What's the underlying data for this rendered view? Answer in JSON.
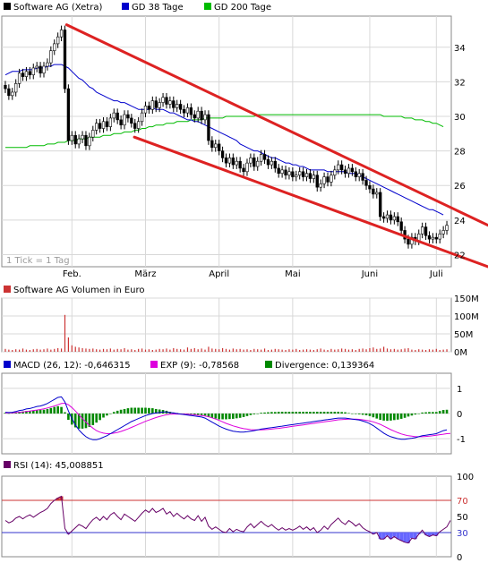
{
  "colors": {
    "price": "#000000",
    "candle_up": "#2a9b2a",
    "candle_down": "#000000",
    "gd38": "#0000cc",
    "gd200": "#00bb00",
    "trend_channel": "#dd2222",
    "volume": "#cc3333",
    "macd": "#0000cc",
    "exp": "#dd00dd",
    "divergence": "#008800",
    "rsi": "#660066",
    "rsi_fill": "#6666ff",
    "rsi_line_70": "#cc3333",
    "rsi_line_30": "#3333cc",
    "grid": "#d8d8d8"
  },
  "chart_data": [
    {
      "type": "candlestick",
      "title": "",
      "legend": [
        {
          "label": "Software AG (Xetra)",
          "color": "#000000"
        },
        {
          "label": "GD 38 Tage",
          "color": "#0000cc"
        },
        {
          "label": "GD 200 Tage",
          "color": "#00bb00"
        }
      ],
      "note": "1 Tick = 1 Tag",
      "x_ticks": [
        "Feb.",
        "März",
        "April",
        "Mai",
        "Juni",
        "Juli"
      ],
      "y_ticks": [
        22,
        24,
        26,
        28,
        30,
        32,
        34
      ],
      "ylim": [
        21.3,
        35.8
      ],
      "close": [
        31.6,
        31.2,
        31.4,
        31.9,
        32.5,
        32.3,
        32.6,
        32.4,
        32.8,
        32.9,
        32.5,
        32.9,
        33.1,
        33.8,
        34.2,
        34.6,
        35.0,
        31.6,
        28.6,
        28.9,
        28.4,
        28.7,
        28.9,
        28.3,
        28.8,
        29.2,
        29.6,
        29.3,
        29.7,
        29.4,
        29.9,
        30.2,
        29.8,
        29.5,
        30.1,
        29.9,
        29.6,
        29.3,
        29.7,
        30.2,
        30.6,
        30.4,
        30.9,
        30.5,
        30.8,
        31.1,
        30.7,
        30.9,
        30.5,
        30.7,
        30.4,
        30.2,
        30.5,
        30.1,
        29.9,
        30.3,
        29.8,
        30.1,
        28.6,
        28.2,
        28.4,
        28.0,
        27.6,
        27.3,
        27.6,
        27.2,
        27.4,
        27.0,
        26.8,
        27.3,
        27.6,
        27.1,
        27.4,
        27.8,
        27.5,
        27.2,
        27.4,
        27.0,
        26.7,
        26.9,
        26.6,
        26.8,
        26.5,
        26.6,
        26.8,
        26.5,
        26.7,
        26.4,
        26.6,
        25.9,
        26.1,
        26.5,
        26.2,
        26.6,
        26.9,
        27.2,
        26.9,
        26.7,
        27.0,
        26.8,
        26.5,
        26.7,
        26.3,
        26.0,
        25.8,
        25.5,
        25.6,
        24.2,
        24.1,
        24.3,
        24.0,
        24.2,
        23.9,
        23.4,
        22.9,
        22.6,
        23.0,
        22.8,
        23.2,
        23.6,
        23.1,
        22.9,
        23.0,
        22.9,
        23.2,
        23.4,
        23.7
      ],
      "gd38": [
        32.4,
        32.5,
        32.6,
        32.6,
        32.6,
        32.7,
        32.7,
        32.7,
        32.7,
        32.8,
        32.8,
        32.8,
        32.9,
        32.9,
        33.0,
        33.0,
        33.0,
        32.9,
        32.8,
        32.6,
        32.4,
        32.2,
        32.1,
        31.9,
        31.7,
        31.6,
        31.4,
        31.3,
        31.2,
        31.1,
        31.0,
        30.9,
        30.9,
        30.8,
        30.8,
        30.7,
        30.6,
        30.5,
        30.4,
        30.4,
        30.4,
        30.4,
        30.5,
        30.4,
        30.4,
        30.4,
        30.3,
        30.2,
        30.2,
        30.1,
        30.0,
        29.9,
        29.8,
        29.8,
        29.7,
        29.7,
        29.6,
        29.5,
        29.4,
        29.3,
        29.2,
        29.1,
        29.0,
        28.9,
        28.8,
        28.7,
        28.6,
        28.4,
        28.3,
        28.2,
        28.1,
        28.0,
        28.0,
        27.9,
        27.8,
        27.7,
        27.6,
        27.6,
        27.5,
        27.4,
        27.3,
        27.3,
        27.2,
        27.2,
        27.1,
        27.1,
        27.0,
        26.9,
        26.9,
        26.9,
        26.9,
        26.9,
        26.8,
        26.8,
        26.8,
        26.8,
        26.8,
        26.8,
        26.7,
        26.7,
        26.7,
        26.6,
        26.5,
        26.4,
        26.3,
        26.2,
        26.1,
        26.0,
        25.9,
        25.8,
        25.7,
        25.6,
        25.5,
        25.4,
        25.3,
        25.2,
        25.1,
        25.0,
        24.9,
        24.8,
        24.7,
        24.6,
        24.6,
        24.5,
        24.4,
        24.3
      ],
      "gd200": [
        28.2,
        28.2,
        28.2,
        28.2,
        28.2,
        28.2,
        28.2,
        28.3,
        28.3,
        28.3,
        28.3,
        28.3,
        28.4,
        28.4,
        28.4,
        28.5,
        28.5,
        28.5,
        28.6,
        28.6,
        28.6,
        28.7,
        28.7,
        28.7,
        28.8,
        28.8,
        28.8,
        28.8,
        28.9,
        28.9,
        28.9,
        29.0,
        29.0,
        29.0,
        29.1,
        29.1,
        29.1,
        29.2,
        29.2,
        29.3,
        29.3,
        29.4,
        29.4,
        29.5,
        29.5,
        29.5,
        29.6,
        29.6,
        29.6,
        29.7,
        29.7,
        29.7,
        29.7,
        29.8,
        29.8,
        29.8,
        29.8,
        29.9,
        29.9,
        29.9,
        29.9,
        29.9,
        29.9,
        30.0,
        30.0,
        30.0,
        30.0,
        30.0,
        30.0,
        30.0,
        30.0,
        30.0,
        30.1,
        30.1,
        30.1,
        30.1,
        30.1,
        30.1,
        30.1,
        30.1,
        30.1,
        30.1,
        30.1,
        30.1,
        30.1,
        30.1,
        30.1,
        30.1,
        30.1,
        30.1,
        30.1,
        30.1,
        30.1,
        30.1,
        30.1,
        30.1,
        30.1,
        30.1,
        30.1,
        30.1,
        30.1,
        30.1,
        30.1,
        30.1,
        30.1,
        30.1,
        30.1,
        30.1,
        30.0,
        30.0,
        30.0,
        30.0,
        30.0,
        30.0,
        29.9,
        29.9,
        29.9,
        29.8,
        29.8,
        29.8,
        29.7,
        29.7,
        29.6,
        29.6,
        29.5,
        29.4
      ],
      "trend_channel": {
        "upper": {
          "from": [
            0.13,
            35.3
          ],
          "to": [
            1.0,
            23.7
          ]
        },
        "lower": {
          "from": [
            0.27,
            28.8
          ],
          "to": [
            1.0,
            21.3
          ]
        }
      }
    },
    {
      "type": "bar",
      "title": "",
      "legend": [
        {
          "label": "Software AG Volumen in Euro",
          "color": "#cc3333"
        }
      ],
      "y_ticks": [
        "150M",
        "100M",
        "50M",
        "0M"
      ],
      "y_tick_values": [
        150,
        100,
        50,
        0
      ],
      "ylim": [
        0,
        150
      ],
      "peak_value": 103,
      "values": [
        8,
        6,
        5,
        7,
        6,
        9,
        6,
        5,
        7,
        8,
        6,
        7,
        9,
        6,
        8,
        10,
        9,
        103,
        40,
        18,
        14,
        12,
        10,
        9,
        8,
        9,
        7,
        6,
        8,
        7,
        9,
        6,
        8,
        7,
        10,
        6,
        7,
        5,
        8,
        9,
        6,
        7,
        5,
        6,
        8,
        7,
        9,
        6,
        10,
        8,
        7,
        6,
        12,
        8,
        10,
        7,
        9,
        6,
        14,
        9,
        8,
        7,
        10,
        8,
        6,
        9,
        7,
        8,
        6,
        7,
        5,
        8,
        7,
        6,
        9,
        5,
        6,
        8,
        7,
        6,
        5,
        7,
        6,
        8,
        5,
        6,
        7,
        6,
        5,
        7,
        9,
        6,
        5,
        8,
        6,
        7,
        9,
        8,
        6,
        7,
        5,
        8,
        9,
        7,
        10,
        12,
        8,
        9,
        14,
        9,
        7,
        8,
        6,
        7,
        9,
        10,
        6,
        5,
        7,
        6,
        5,
        7,
        6,
        8,
        5,
        6,
        7
      ]
    },
    {
      "type": "line",
      "title": "",
      "legend": [
        {
          "label": "MACD (26, 12): -0,646315",
          "color": "#0000cc"
        },
        {
          "label": "EXP (9): -0,78568",
          "color": "#dd00dd"
        },
        {
          "label": "Divergence: 0,139364",
          "color": "#008800"
        }
      ],
      "y_ticks": [
        1,
        0,
        -1
      ],
      "ylim": [
        -1.6,
        1.6
      ],
      "macd": [
        0.05,
        0.04,
        0.05,
        0.08,
        0.12,
        0.14,
        0.18,
        0.2,
        0.24,
        0.28,
        0.3,
        0.34,
        0.4,
        0.48,
        0.56,
        0.64,
        0.66,
        0.46,
        0.1,
        -0.2,
        -0.45,
        -0.65,
        -0.8,
        -0.92,
        -1.0,
        -1.04,
        -1.04,
        -1.0,
        -0.94,
        -0.88,
        -0.8,
        -0.72,
        -0.64,
        -0.56,
        -0.48,
        -0.4,
        -0.32,
        -0.26,
        -0.2,
        -0.14,
        -0.08,
        -0.04,
        0.0,
        0.02,
        0.04,
        0.06,
        0.06,
        0.04,
        0.02,
        0.0,
        -0.02,
        -0.04,
        -0.06,
        -0.08,
        -0.1,
        -0.12,
        -0.14,
        -0.18,
        -0.26,
        -0.34,
        -0.42,
        -0.5,
        -0.56,
        -0.62,
        -0.66,
        -0.7,
        -0.72,
        -0.74,
        -0.74,
        -0.72,
        -0.7,
        -0.68,
        -0.65,
        -0.62,
        -0.6,
        -0.58,
        -0.56,
        -0.54,
        -0.52,
        -0.5,
        -0.48,
        -0.46,
        -0.44,
        -0.42,
        -0.4,
        -0.38,
        -0.36,
        -0.34,
        -0.32,
        -0.3,
        -0.28,
        -0.26,
        -0.24,
        -0.22,
        -0.2,
        -0.18,
        -0.18,
        -0.18,
        -0.2,
        -0.22,
        -0.24,
        -0.26,
        -0.3,
        -0.34,
        -0.4,
        -0.48,
        -0.58,
        -0.68,
        -0.78,
        -0.86,
        -0.92,
        -0.96,
        -1.0,
        -1.02,
        -1.02,
        -1.0,
        -0.98,
        -0.96,
        -0.92,
        -0.88,
        -0.86,
        -0.84,
        -0.82,
        -0.8,
        -0.74,
        -0.68,
        -0.65
      ],
      "exp": [
        0.02,
        0.03,
        0.03,
        0.04,
        0.05,
        0.06,
        0.08,
        0.1,
        0.12,
        0.14,
        0.16,
        0.19,
        0.22,
        0.26,
        0.3,
        0.35,
        0.4,
        0.41,
        0.35,
        0.24,
        0.1,
        -0.05,
        -0.2,
        -0.34,
        -0.47,
        -0.58,
        -0.68,
        -0.74,
        -0.78,
        -0.8,
        -0.8,
        -0.78,
        -0.75,
        -0.71,
        -0.66,
        -0.61,
        -0.55,
        -0.49,
        -0.43,
        -0.37,
        -0.31,
        -0.26,
        -0.21,
        -0.16,
        -0.12,
        -0.08,
        -0.05,
        -0.03,
        -0.02,
        -0.02,
        -0.02,
        -0.02,
        -0.03,
        -0.04,
        -0.05,
        -0.07,
        -0.08,
        -0.1,
        -0.13,
        -0.17,
        -0.22,
        -0.27,
        -0.33,
        -0.39,
        -0.44,
        -0.49,
        -0.53,
        -0.57,
        -0.6,
        -0.62,
        -0.64,
        -0.65,
        -0.65,
        -0.65,
        -0.64,
        -0.63,
        -0.62,
        -0.6,
        -0.59,
        -0.57,
        -0.55,
        -0.53,
        -0.51,
        -0.49,
        -0.47,
        -0.45,
        -0.43,
        -0.41,
        -0.39,
        -0.37,
        -0.35,
        -0.33,
        -0.31,
        -0.29,
        -0.27,
        -0.25,
        -0.24,
        -0.23,
        -0.22,
        -0.22,
        -0.22,
        -0.23,
        -0.25,
        -0.27,
        -0.3,
        -0.33,
        -0.38,
        -0.43,
        -0.5,
        -0.57,
        -0.64,
        -0.7,
        -0.76,
        -0.81,
        -0.85,
        -0.88,
        -0.9,
        -0.92,
        -0.92,
        -0.92,
        -0.91,
        -0.9,
        -0.88,
        -0.86,
        -0.84,
        -0.82,
        -0.8,
        -0.79
      ]
    },
    {
      "type": "line",
      "title": "",
      "legend": [
        {
          "label": "RSI (14): 45,008851",
          "color": "#660066"
        }
      ],
      "y_ticks": [
        100,
        70,
        50,
        30,
        0
      ],
      "ylim": [
        0,
        100
      ],
      "levels": [
        70,
        30
      ],
      "values": [
        45,
        42,
        44,
        48,
        50,
        47,
        50,
        52,
        49,
        52,
        55,
        57,
        60,
        66,
        70,
        73,
        75,
        35,
        28,
        32,
        36,
        40,
        38,
        35,
        41,
        46,
        49,
        45,
        50,
        46,
        52,
        55,
        50,
        46,
        53,
        50,
        47,
        44,
        49,
        54,
        58,
        55,
        60,
        55,
        57,
        60,
        53,
        56,
        50,
        54,
        50,
        47,
        51,
        47,
        45,
        51,
        44,
        49,
        38,
        34,
        37,
        34,
        31,
        30,
        35,
        31,
        34,
        32,
        31,
        37,
        41,
        36,
        40,
        44,
        40,
        37,
        40,
        36,
        33,
        36,
        33,
        35,
        33,
        35,
        38,
        34,
        37,
        33,
        36,
        30,
        33,
        38,
        34,
        40,
        44,
        48,
        43,
        40,
        45,
        42,
        38,
        41,
        36,
        33,
        31,
        28,
        30,
        22,
        22,
        26,
        22,
        25,
        22,
        20,
        18,
        17,
        23,
        22,
        28,
        33,
        27,
        25,
        27,
        26,
        31,
        34,
        37,
        45
      ]
    }
  ]
}
